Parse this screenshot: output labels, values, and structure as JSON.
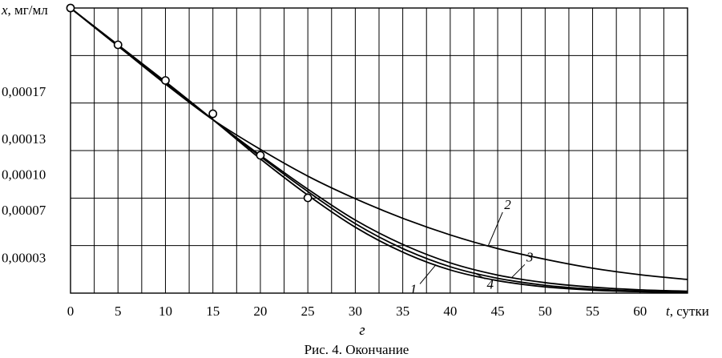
{
  "caption": "Рис. 4. Окончание",
  "panel_label": "г",
  "chart_data": {
    "type": "line",
    "x_axis": {
      "title_var": "t",
      "title_unit": ", сутки",
      "range": [
        0,
        65
      ],
      "ticks": [
        0,
        5,
        10,
        15,
        20,
        25,
        30,
        35,
        40,
        45,
        50,
        55,
        60
      ],
      "tick_labels": [
        "0",
        "5",
        "10",
        "15",
        "20",
        "25",
        "30",
        "35",
        "40",
        "45",
        "50",
        "55",
        "60"
      ],
      "minor_step": 2.5
    },
    "y_axis": {
      "title_var": "x",
      "title_unit": ", мг/мл",
      "range": [
        0,
        0.00024
      ],
      "ticks": [
        3e-05,
        7e-05,
        0.0001,
        0.00013,
        0.00017
      ],
      "tick_labels": [
        "0,00003",
        "0,00007",
        "0,00010",
        "0,00013",
        "0,00017"
      ],
      "grid_lines": [
        4e-05,
        8e-05,
        0.00012,
        0.00016,
        0.0002,
        0.00024
      ]
    },
    "grid": true,
    "series": [
      {
        "name": "1",
        "x": [
          0,
          5,
          10,
          15,
          20,
          25,
          30,
          35,
          40,
          45,
          50,
          55,
          60,
          65
        ],
        "y": [
          0.00024,
          0.000209,
          0.000178,
          0.000146,
          0.000113,
          8.25e-05,
          5.55e-05,
          3.45e-05,
          1.95e-05,
          1.05e-05,
          5.2e-06,
          2.5e-06,
          1.2e-06,
          5e-07
        ]
      },
      {
        "name": "2",
        "x": [
          0,
          5,
          10,
          15,
          20,
          25,
          30,
          35,
          40,
          45,
          50,
          55,
          60,
          65
        ],
        "y": [
          0.00024,
          0.000208,
          0.000176,
          0.000146,
          0.000121,
          9.85e-05,
          7.95e-05,
          6.3e-05,
          4.9e-05,
          3.75e-05,
          2.85e-05,
          2.1e-05,
          1.55e-05,
          1.15e-05
        ]
      },
      {
        "name": "3",
        "x": [
          0,
          5,
          10,
          15,
          20,
          25,
          30,
          35,
          40,
          45,
          50,
          55,
          60,
          65
        ],
        "y": [
          0.00024,
          0.000208,
          0.000177,
          0.000146,
          0.000116,
          8.75e-05,
          6.15e-05,
          4.1e-05,
          2.55e-05,
          1.52e-05,
          8.8e-06,
          5e-06,
          2.8e-06,
          1.6e-06
        ]
      },
      {
        "name": "4",
        "x": [
          0,
          5,
          10,
          15,
          20,
          25,
          30,
          35,
          40,
          45,
          50,
          55,
          60,
          65
        ],
        "y": [
          0.00024,
          0.000208,
          0.000177,
          0.000146,
          0.000115,
          8.55e-05,
          5.85e-05,
          3.75e-05,
          2.22e-05,
          1.25e-05,
          6.6e-06,
          3.4e-06,
          1.7e-06,
          8e-07
        ]
      }
    ],
    "markers": {
      "x": [
        0,
        5,
        10,
        15,
        20,
        25
      ],
      "y": [
        0.00024,
        0.000209,
        0.000179,
        0.000151,
        0.000116,
        8.02e-05
      ]
    },
    "curve_label_positions": [
      {
        "name": "1",
        "at_x": 38.5
      },
      {
        "name": "2",
        "at_x": 44
      },
      {
        "name": "3",
        "at_x": 46.5
      },
      {
        "name": "4",
        "at_x": 42.5
      }
    ]
  }
}
